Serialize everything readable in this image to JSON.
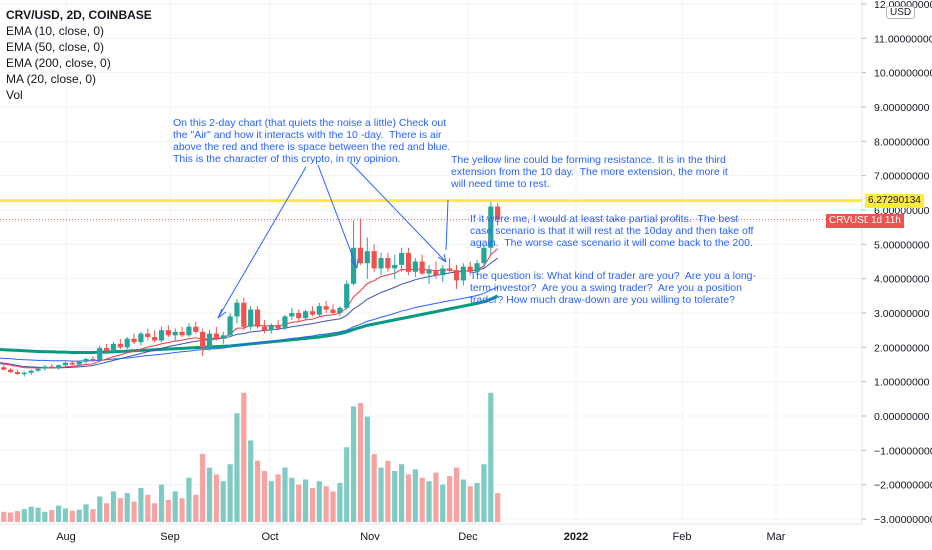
{
  "legend": {
    "title": "CRV/USD, 2D, COINBASE",
    "items": [
      "EMA (10, close, 0)",
      "EMA (50, close, 0)",
      "EMA (200, close, 0)",
      "MA (20, close, 0)",
      "Vol"
    ]
  },
  "currency_badge": "USD",
  "symbol_tag": "CRVUSD",
  "countdown_tag": "1d 11h",
  "resistance_label": "6.27290134",
  "annotations": [
    "On this 2-day chart (that quiets the noise a little) Check out\nthe \"Air\" and how it interacts with the 10 -day.  There is air\nabove the red and there is space between the red and blue.\nThis is the character of this crypto, in my opinion.",
    "The yellow line could be forming resistance. It is in the third\nextension from the 10 day.  The more extension, the more it\nwill need time to rest.",
    "If it were me, I would at least take partial profits.  The best\ncase scenario is that it will rest at the 10day and then take off\nagain.  The worse case scenario it will come back to the 200.",
    "The question is: What kind of trader are you?  Are you a long-\nterm investor?  Are you a swing trader?  Are you a position\ntrader? How much draw-down are you willing to tolerate?"
  ],
  "colors": {
    "up": "#26a69a",
    "down": "#ef5350",
    "ema10": "#f23645",
    "ema50": "#2962ff",
    "ema200": "#089981",
    "resistance": "#ffeb3b",
    "annotation": "#2962ff"
  },
  "chart_data": {
    "type": "candlestick",
    "y_ticks": [
      "12.00000000",
      "11.00000000",
      "10.00000000",
      "9.00000000",
      "8.00000000",
      "7.00000000",
      "6.00000000",
      "5.00000000",
      "4.00000000",
      "3.00000000",
      "2.00000000",
      "1.00000000",
      "0.00000000",
      "−1.00000000",
      "−2.00000000",
      "−3.00000000"
    ],
    "x_ticks": [
      "Aug",
      "Sep",
      "Oct",
      "Nov",
      "Dec",
      "2022",
      "Feb",
      "Mar"
    ],
    "resistance_level": 6.2729,
    "last_price": 5.72,
    "candles": [
      [
        1.55,
        1.55,
        1.35,
        1.38
      ],
      [
        1.38,
        1.45,
        1.3,
        1.42
      ],
      [
        1.42,
        1.48,
        1.33,
        1.35
      ],
      [
        1.35,
        1.4,
        1.25,
        1.28
      ],
      [
        1.28,
        1.35,
        1.2,
        1.22
      ],
      [
        1.22,
        1.3,
        1.15,
        1.26
      ],
      [
        1.26,
        1.35,
        1.2,
        1.32
      ],
      [
        1.32,
        1.42,
        1.28,
        1.38
      ],
      [
        1.38,
        1.48,
        1.32,
        1.44
      ],
      [
        1.44,
        1.52,
        1.38,
        1.4
      ],
      [
        1.4,
        1.5,
        1.35,
        1.48
      ],
      [
        1.48,
        1.58,
        1.42,
        1.55
      ],
      [
        1.55,
        1.62,
        1.48,
        1.5
      ],
      [
        1.5,
        1.6,
        1.46,
        1.58
      ],
      [
        1.58,
        1.7,
        1.52,
        1.66
      ],
      [
        1.66,
        1.75,
        1.58,
        1.62
      ],
      [
        1.62,
        2.05,
        1.58,
        1.98
      ],
      [
        1.98,
        2.1,
        1.85,
        1.9
      ],
      [
        1.9,
        2.15,
        1.85,
        2.1
      ],
      [
        2.1,
        2.25,
        1.95,
        2.0
      ],
      [
        2.0,
        2.3,
        1.95,
        2.25
      ],
      [
        2.25,
        2.4,
        2.1,
        2.15
      ],
      [
        2.15,
        2.45,
        2.05,
        2.4
      ],
      [
        2.4,
        2.55,
        2.2,
        2.3
      ],
      [
        2.3,
        2.5,
        2.15,
        2.2
      ],
      [
        2.2,
        2.6,
        2.15,
        2.5
      ],
      [
        2.5,
        2.65,
        2.3,
        2.35
      ],
      [
        2.35,
        2.55,
        2.2,
        2.45
      ],
      [
        2.45,
        2.6,
        2.3,
        2.35
      ],
      [
        2.35,
        2.7,
        2.3,
        2.6
      ],
      [
        2.6,
        2.75,
        2.4,
        2.45
      ],
      [
        2.45,
        2.55,
        1.75,
        2.0
      ],
      [
        2.0,
        2.5,
        1.9,
        2.4
      ],
      [
        2.4,
        2.6,
        2.2,
        2.25
      ],
      [
        2.25,
        2.45,
        2.1,
        2.35
      ],
      [
        2.35,
        3.0,
        2.3,
        2.9
      ],
      [
        2.9,
        3.4,
        2.7,
        3.3
      ],
      [
        3.3,
        3.45,
        2.5,
        2.6
      ],
      [
        2.6,
        3.2,
        2.5,
        3.1
      ],
      [
        3.1,
        3.2,
        2.55,
        2.6
      ],
      [
        2.6,
        2.8,
        2.4,
        2.5
      ],
      [
        2.5,
        2.7,
        2.4,
        2.65
      ],
      [
        2.65,
        2.8,
        2.5,
        2.55
      ],
      [
        2.55,
        2.95,
        2.5,
        2.9
      ],
      [
        2.9,
        3.15,
        2.8,
        3.0
      ],
      [
        3.0,
        3.1,
        2.75,
        2.85
      ],
      [
        2.85,
        3.1,
        2.8,
        3.05
      ],
      [
        3.05,
        3.2,
        2.9,
        2.95
      ],
      [
        2.95,
        3.3,
        2.9,
        3.2
      ],
      [
        3.2,
        3.35,
        3.0,
        3.1
      ],
      [
        3.1,
        3.25,
        2.95,
        3.0
      ],
      [
        3.0,
        3.2,
        2.9,
        3.15
      ],
      [
        3.15,
        3.95,
        3.1,
        3.85
      ],
      [
        3.85,
        5.7,
        3.8,
        4.9
      ],
      [
        4.9,
        5.75,
        4.4,
        4.45
      ],
      [
        4.45,
        5.2,
        4.0,
        4.8
      ],
      [
        4.8,
        5.0,
        4.2,
        4.3
      ],
      [
        4.3,
        4.75,
        4.1,
        4.6
      ],
      [
        4.6,
        4.75,
        4.2,
        4.3
      ],
      [
        4.3,
        4.7,
        4.0,
        4.4
      ],
      [
        4.4,
        4.9,
        4.2,
        4.75
      ],
      [
        4.75,
        4.9,
        4.1,
        4.2
      ],
      [
        4.2,
        4.6,
        4.05,
        4.5
      ],
      [
        4.5,
        4.7,
        4.1,
        4.15
      ],
      [
        4.15,
        4.4,
        3.85,
        4.25
      ],
      [
        4.25,
        4.5,
        4.0,
        4.1
      ],
      [
        4.1,
        4.4,
        3.9,
        4.3
      ],
      [
        4.3,
        4.6,
        4.2,
        4.25
      ],
      [
        4.25,
        4.4,
        3.7,
        3.95
      ],
      [
        3.95,
        4.45,
        3.8,
        4.35
      ],
      [
        4.35,
        4.5,
        4.1,
        4.2
      ],
      [
        4.2,
        4.55,
        4.1,
        4.45
      ],
      [
        4.45,
        5.0,
        4.3,
        4.9
      ],
      [
        4.9,
        6.25,
        4.7,
        6.1
      ],
      [
        6.1,
        6.2,
        5.55,
        5.72
      ]
    ],
    "volumes": [
      0.35,
      0.4,
      0.3,
      0.28,
      0.32,
      0.38,
      0.45,
      0.42,
      0.3,
      0.35,
      0.48,
      0.4,
      0.33,
      0.36,
      0.52,
      0.38,
      0.75,
      0.55,
      0.9,
      0.7,
      0.85,
      0.6,
      1.0,
      0.8,
      0.55,
      1.1,
      0.65,
      0.9,
      0.7,
      1.3,
      0.8,
      2.0,
      1.6,
      1.4,
      1.2,
      1.7,
      3.2,
      3.8,
      2.4,
      1.8,
      1.5,
      1.2,
      1.4,
      1.6,
      1.3,
      1.1,
      1.25,
      1.0,
      1.2,
      1.05,
      0.9,
      1.15,
      2.2,
      3.4,
      3.5,
      3.1,
      2.0,
      1.6,
      1.8,
      1.5,
      1.7,
      1.4,
      1.55,
      1.3,
      1.2,
      1.45,
      1.1,
      1.35,
      1.6,
      1.25,
      1.05,
      1.15,
      1.7,
      3.8,
      0.85
    ],
    "ema10": [
      1.55,
      1.53,
      1.51,
      1.48,
      1.44,
      1.41,
      1.4,
      1.4,
      1.4,
      1.4,
      1.41,
      1.43,
      1.45,
      1.47,
      1.5,
      1.52,
      1.6,
      1.66,
      1.73,
      1.78,
      1.84,
      1.89,
      1.95,
      2.01,
      2.05,
      2.1,
      2.14,
      2.18,
      2.21,
      2.25,
      2.28,
      2.23,
      2.26,
      2.26,
      2.28,
      2.38,
      2.56,
      2.56,
      2.65,
      2.64,
      2.62,
      2.63,
      2.62,
      2.67,
      2.73,
      2.75,
      2.8,
      2.82,
      2.89,
      2.93,
      2.95,
      2.99,
      3.15,
      3.47,
      3.65,
      3.86,
      3.94,
      4.06,
      4.11,
      4.16,
      4.27,
      4.25,
      4.29,
      4.26,
      4.26,
      4.23,
      4.25,
      4.25,
      4.2,
      4.23,
      4.22,
      4.26,
      4.37,
      4.69,
      4.88
    ],
    "ema50": [
      1.7,
      1.69,
      1.68,
      1.67,
      1.65,
      1.64,
      1.63,
      1.62,
      1.62,
      1.61,
      1.61,
      1.61,
      1.6,
      1.6,
      1.61,
      1.61,
      1.62,
      1.64,
      1.66,
      1.67,
      1.69,
      1.71,
      1.74,
      1.76,
      1.78,
      1.8,
      1.82,
      1.85,
      1.87,
      1.89,
      1.92,
      1.93,
      1.95,
      1.96,
      1.98,
      2.01,
      2.06,
      2.08,
      2.12,
      2.14,
      2.16,
      2.18,
      2.2,
      2.23,
      2.26,
      2.28,
      2.31,
      2.33,
      2.37,
      2.39,
      2.42,
      2.45,
      2.5,
      2.6,
      2.67,
      2.76,
      2.81,
      2.88,
      2.93,
      2.99,
      3.06,
      3.1,
      3.16,
      3.2,
      3.24,
      3.28,
      3.32,
      3.36,
      3.39,
      3.43,
      3.47,
      3.51,
      3.57,
      3.67,
      3.75
    ],
    "ema200": [
      1.95,
      1.94,
      1.93,
      1.92,
      1.91,
      1.9,
      1.89,
      1.88,
      1.87,
      1.87,
      1.86,
      1.86,
      1.85,
      1.85,
      1.85,
      1.85,
      1.86,
      1.86,
      1.87,
      1.88,
      1.89,
      1.9,
      1.91,
      1.92,
      1.93,
      1.94,
      1.95,
      1.96,
      1.97,
      1.98,
      1.99,
      2.0,
      2.01,
      2.02,
      2.03,
      2.04,
      2.06,
      2.08,
      2.1,
      2.12,
      2.14,
      2.16,
      2.18,
      2.2,
      2.22,
      2.24,
      2.26,
      2.28,
      2.3,
      2.33,
      2.36,
      2.4,
      2.45,
      2.52,
      2.58,
      2.64,
      2.68,
      2.72,
      2.76,
      2.8,
      2.84,
      2.88,
      2.92,
      2.96,
      3.0,
      3.04,
      3.08,
      3.12,
      3.16,
      3.2,
      3.24,
      3.28,
      3.33,
      3.4,
      3.5
    ],
    "ma20": [
      1.6,
      1.57,
      1.54,
      1.51,
      1.47,
      1.44,
      1.43,
      1.42,
      1.41,
      1.4,
      1.4,
      1.41,
      1.42,
      1.43,
      1.45,
      1.47,
      1.52,
      1.57,
      1.62,
      1.67,
      1.72,
      1.77,
      1.82,
      1.87,
      1.92,
      1.97,
      2.02,
      2.06,
      2.1,
      2.14,
      2.18,
      2.2,
      2.23,
      2.24,
      2.27,
      2.31,
      2.38,
      2.4,
      2.45,
      2.47,
      2.49,
      2.51,
      2.53,
      2.56,
      2.6,
      2.63,
      2.66,
      2.69,
      2.73,
      2.77,
      2.8,
      2.83,
      2.93,
      3.12,
      3.25,
      3.4,
      3.5,
      3.6,
      3.67,
      3.75,
      3.84,
      3.9,
      3.97,
      4.02,
      4.06,
      4.1,
      4.13,
      4.17,
      4.19,
      4.22,
      4.23,
      4.25,
      4.3,
      4.45,
      4.6
    ]
  }
}
